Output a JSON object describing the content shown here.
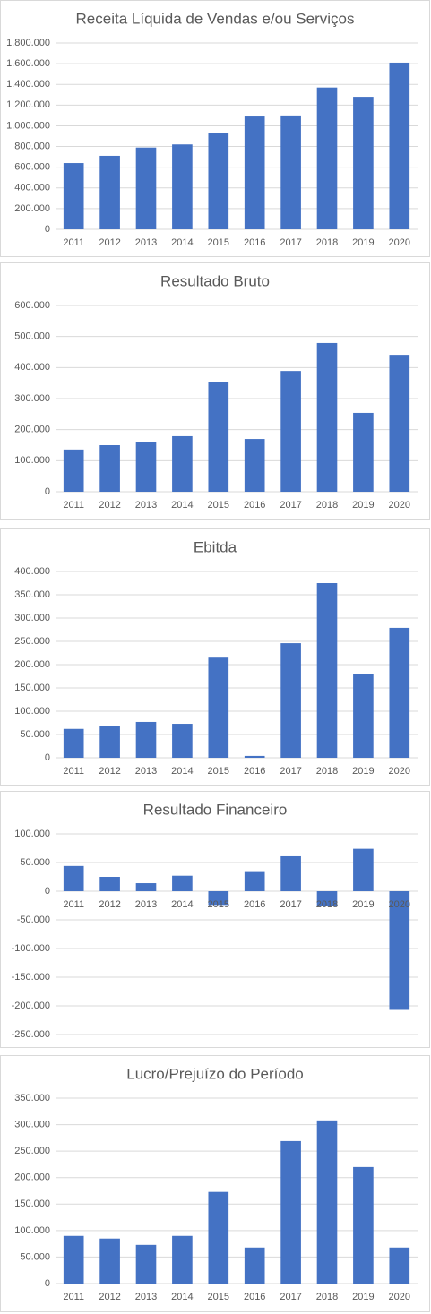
{
  "chart_data": [
    {
      "type": "bar",
      "title": "Receita Líquida de Vendas e/ou Serviços",
      "categories": [
        "2011",
        "2012",
        "2013",
        "2014",
        "2015",
        "2016",
        "2017",
        "2018",
        "2019",
        "2020"
      ],
      "values": [
        640000,
        710000,
        790000,
        820000,
        930000,
        1090000,
        1100000,
        1370000,
        1280000,
        1610000
      ],
      "color": "#4472c4",
      "grid": true,
      "ylim": [
        0,
        1800000
      ],
      "yticks": [
        0,
        {
          "value": 200000,
          "label": "200.000"
        },
        {
          "value": 400000,
          "label": "400.000"
        },
        {
          "value": 600000,
          "label": "600.000"
        },
        {
          "value": 800000,
          "label": "800.000"
        },
        {
          "value": 1000000,
          "label": "1.000.000"
        },
        {
          "value": 1200000,
          "label": "1.200.000"
        },
        {
          "value": 1400000,
          "label": "1.400.000"
        },
        {
          "value": 1600000,
          "label": "1.600.000"
        },
        {
          "value": 1800000,
          "label": "1.800.000"
        }
      ]
    },
    {
      "type": "bar",
      "title": "Resultado Bruto",
      "categories": [
        "2011",
        "2012",
        "2013",
        "2014",
        "2015",
        "2016",
        "2017",
        "2018",
        "2019",
        "2020"
      ],
      "values": [
        136000,
        150000,
        159000,
        179000,
        352000,
        170000,
        389000,
        479000,
        254000,
        441000
      ],
      "color": "#4472c4",
      "grid": true,
      "ylim": [
        0,
        600000
      ],
      "yticks": [
        0,
        {
          "value": 100000,
          "label": "100.000"
        },
        {
          "value": 200000,
          "label": "200.000"
        },
        {
          "value": 300000,
          "label": "300.000"
        },
        {
          "value": 400000,
          "label": "400.000"
        },
        {
          "value": 500000,
          "label": "500.000"
        },
        {
          "value": 600000,
          "label": "600.000"
        }
      ]
    },
    {
      "type": "bar",
      "title": "Ebitda",
      "categories": [
        "2011",
        "2012",
        "2013",
        "2014",
        "2015",
        "2016",
        "2017",
        "2018",
        "2019",
        "2020"
      ],
      "values": [
        62000,
        69000,
        77000,
        73000,
        215000,
        4000,
        246000,
        375000,
        179000,
        279000
      ],
      "color": "#4472c4",
      "grid": true,
      "ylim": [
        0,
        400000
      ],
      "yticks": [
        0,
        {
          "value": 50000,
          "label": "50.000"
        },
        {
          "value": 100000,
          "label": "100.000"
        },
        {
          "value": 150000,
          "label": "150.000"
        },
        {
          "value": 200000,
          "label": "200.000"
        },
        {
          "value": 250000,
          "label": "250.000"
        },
        {
          "value": 300000,
          "label": "300.000"
        },
        {
          "value": 350000,
          "label": "350.000"
        },
        {
          "value": 400000,
          "label": "400.000"
        }
      ]
    },
    {
      "type": "bar",
      "title": "Resultado Financeiro",
      "categories": [
        "2011",
        "2012",
        "2013",
        "2014",
        "2015",
        "2016",
        "2017",
        "2018",
        "2019",
        "2020"
      ],
      "values": [
        44000,
        25000,
        14000,
        27000,
        -24000,
        35000,
        61000,
        -26000,
        74000,
        -207000
      ],
      "color": "#4472c4",
      "grid": true,
      "ylim": [
        -250000,
        100000
      ],
      "yticks": [
        {
          "value": -250000,
          "label": "-250.000"
        },
        {
          "value": -200000,
          "label": "-200.000"
        },
        {
          "value": -150000,
          "label": "-150.000"
        },
        {
          "value": -100000,
          "label": "-100.000"
        },
        {
          "value": -50000,
          "label": "-50.000"
        },
        0,
        {
          "value": 50000,
          "label": "50.000"
        },
        {
          "value": 100000,
          "label": "100.000"
        }
      ]
    },
    {
      "type": "bar",
      "title": "Lucro/Prejuízo do Período",
      "categories": [
        "2011",
        "2012",
        "2013",
        "2014",
        "2015",
        "2016",
        "2017",
        "2018",
        "2019",
        "2020"
      ],
      "values": [
        90000,
        85000,
        73000,
        90000,
        173000,
        68000,
        269000,
        308000,
        220000,
        68000
      ],
      "color": "#4472c4",
      "grid": true,
      "ylim": [
        0,
        350000
      ],
      "yticks": [
        0,
        {
          "value": 50000,
          "label": "50.000"
        },
        {
          "value": 100000,
          "label": "100.000"
        },
        {
          "value": 150000,
          "label": "150.000"
        },
        {
          "value": 200000,
          "label": "200.000"
        },
        {
          "value": 250000,
          "label": "250.000"
        },
        {
          "value": 300000,
          "label": "300.000"
        },
        {
          "value": 350000,
          "label": "350.000"
        }
      ]
    }
  ]
}
